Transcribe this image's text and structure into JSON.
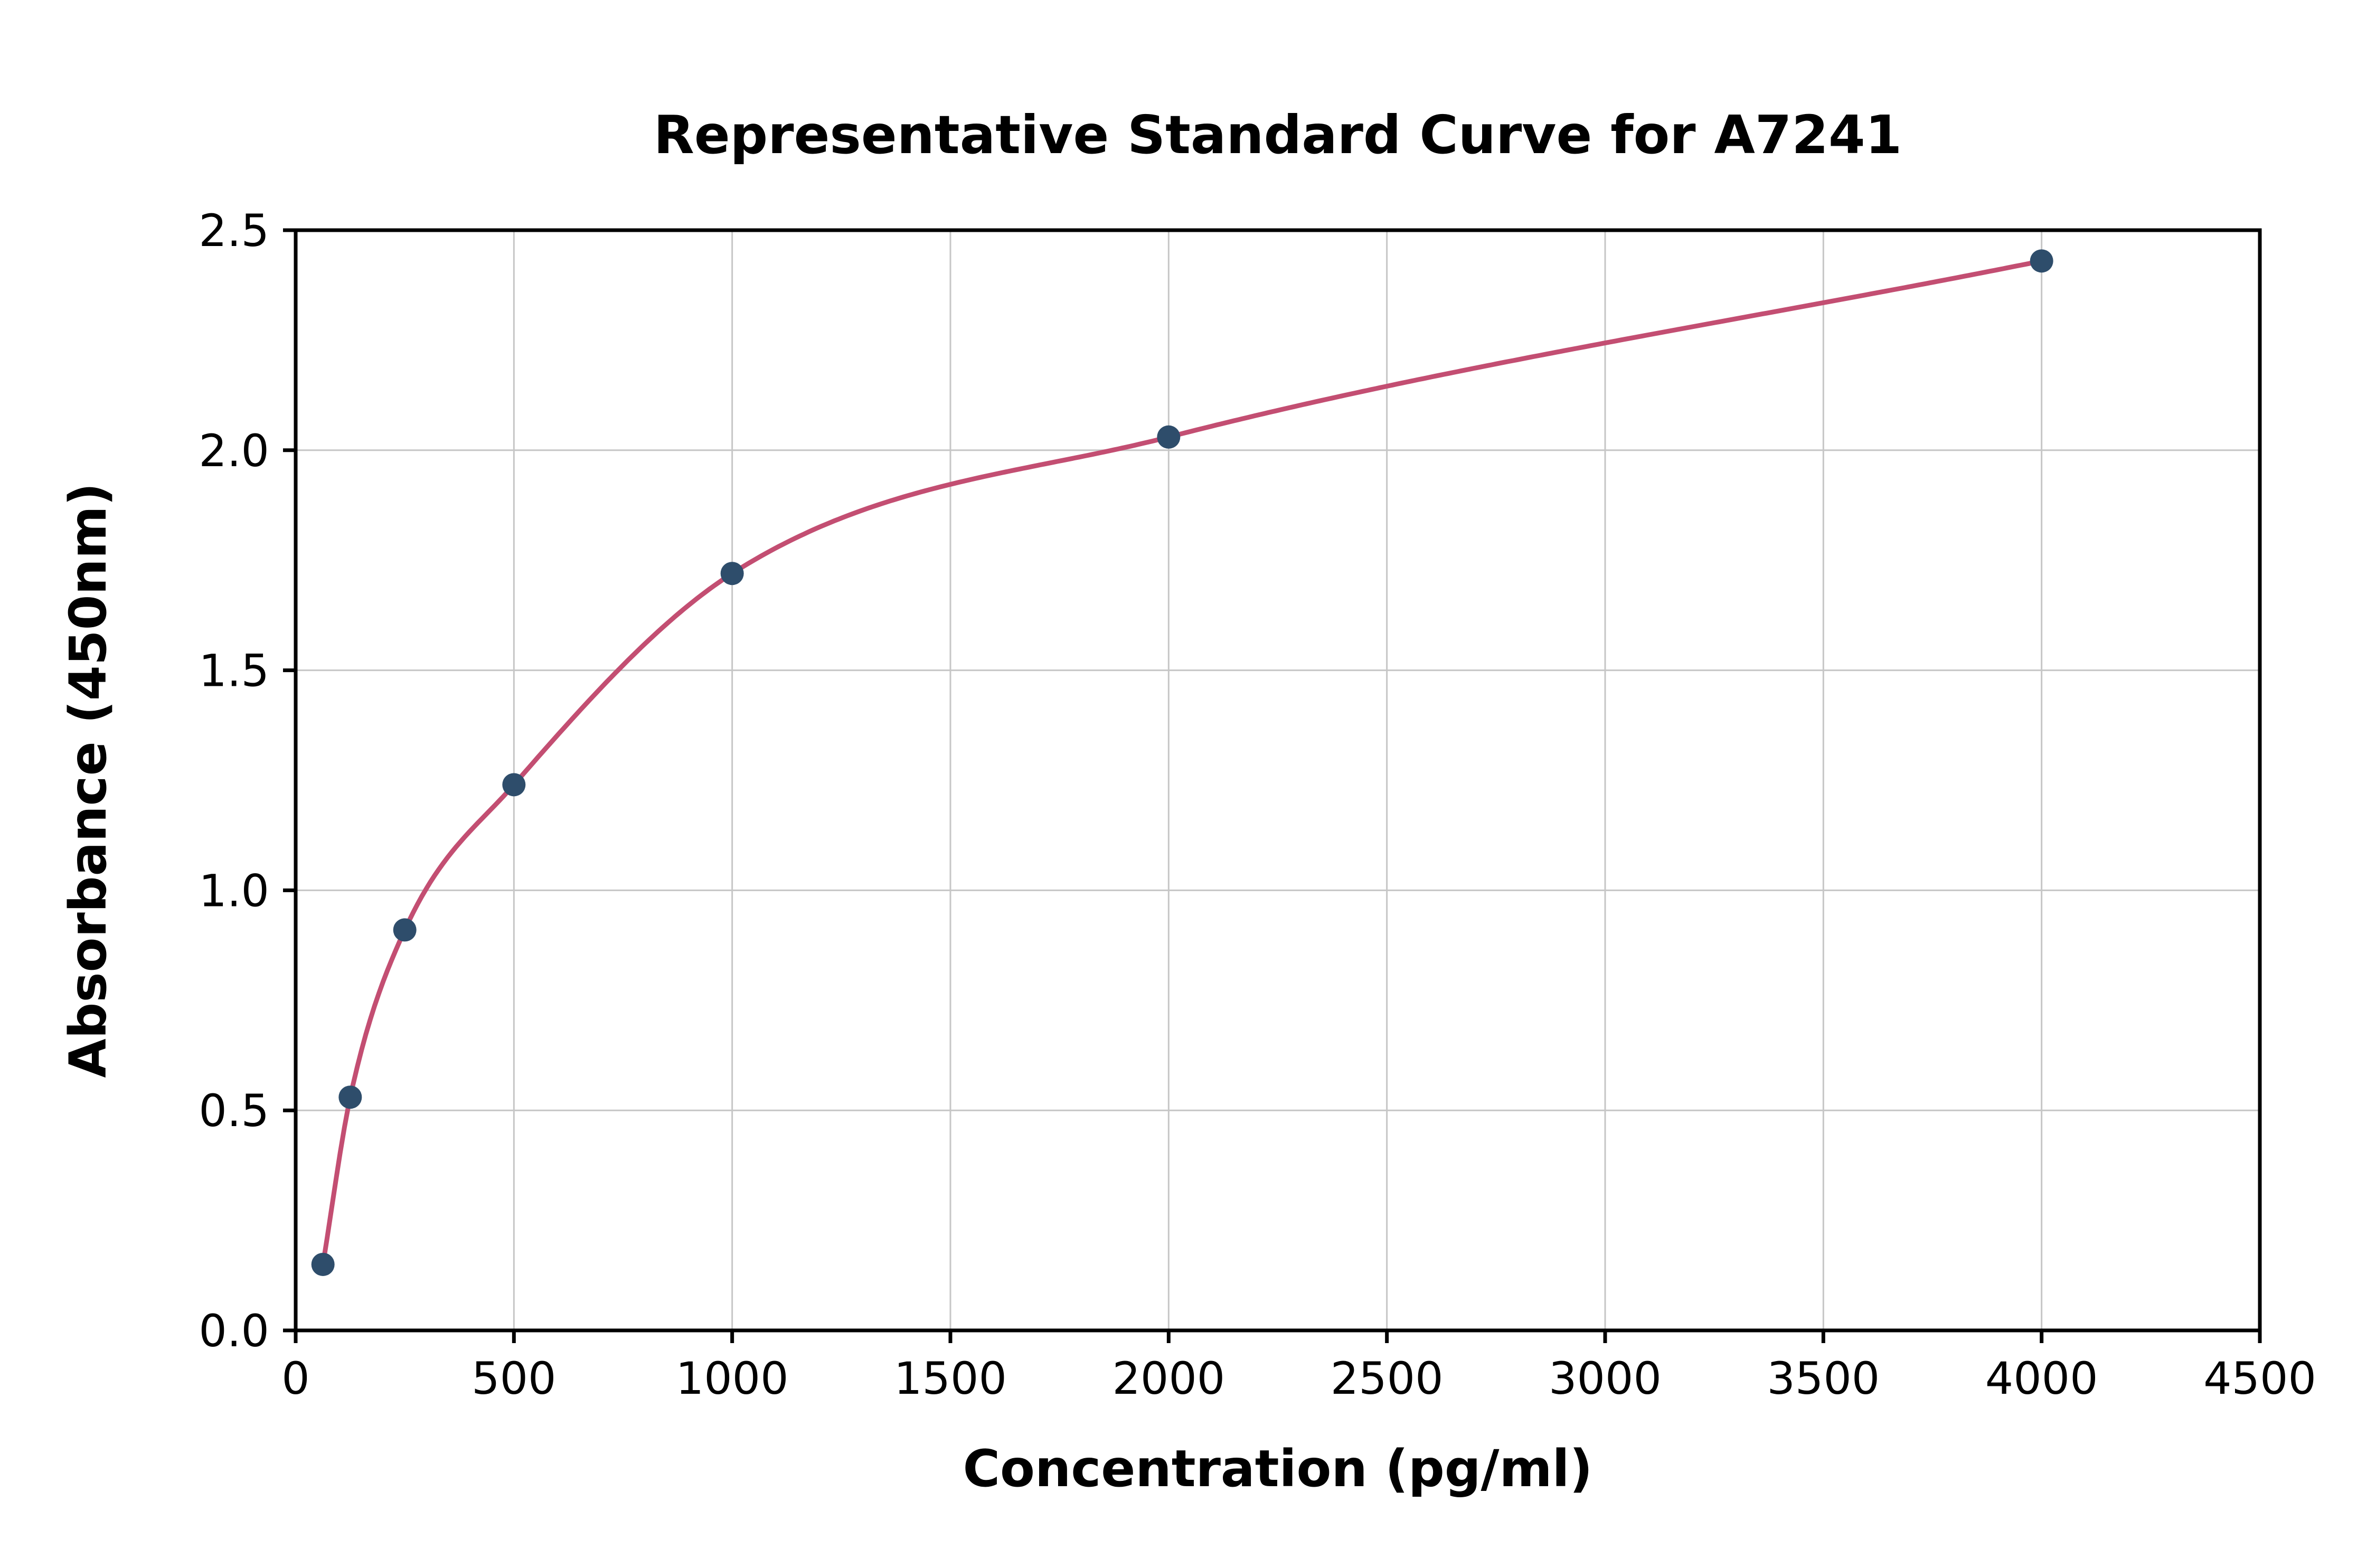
{
  "chart_data": {
    "type": "scatter",
    "title": "Representative Standard Curve for A7241",
    "xlabel": "Concentration (pg/ml)",
    "ylabel": "Absorbance (450nm)",
    "x": [
      62.5,
      125,
      250,
      500,
      1000,
      2000,
      4000
    ],
    "y": [
      0.15,
      0.53,
      0.91,
      1.24,
      1.72,
      2.03,
      2.43
    ],
    "xlim": [
      0,
      4500
    ],
    "ylim": [
      0,
      2.5
    ],
    "xticks": [
      0,
      500,
      1000,
      1500,
      2000,
      2500,
      3000,
      3500,
      4000,
      4500
    ],
    "xtick_labels": [
      "0",
      "500",
      "1000",
      "1500",
      "2000",
      "2500",
      "3000",
      "3500",
      "4000",
      "4500"
    ],
    "yticks": [
      0,
      0.5,
      1.0,
      1.5,
      2.0,
      2.5
    ],
    "ytick_labels": [
      "0.0",
      "0.5",
      "1.0",
      "1.5",
      "2.0",
      "2.5"
    ],
    "grid": true,
    "legend": "none",
    "point_color": "#2e4d6b",
    "line_color": "#c34e72",
    "grid_color": "#c6c6c6",
    "axis_color": "#000000",
    "background_color": "#ffffff"
  }
}
